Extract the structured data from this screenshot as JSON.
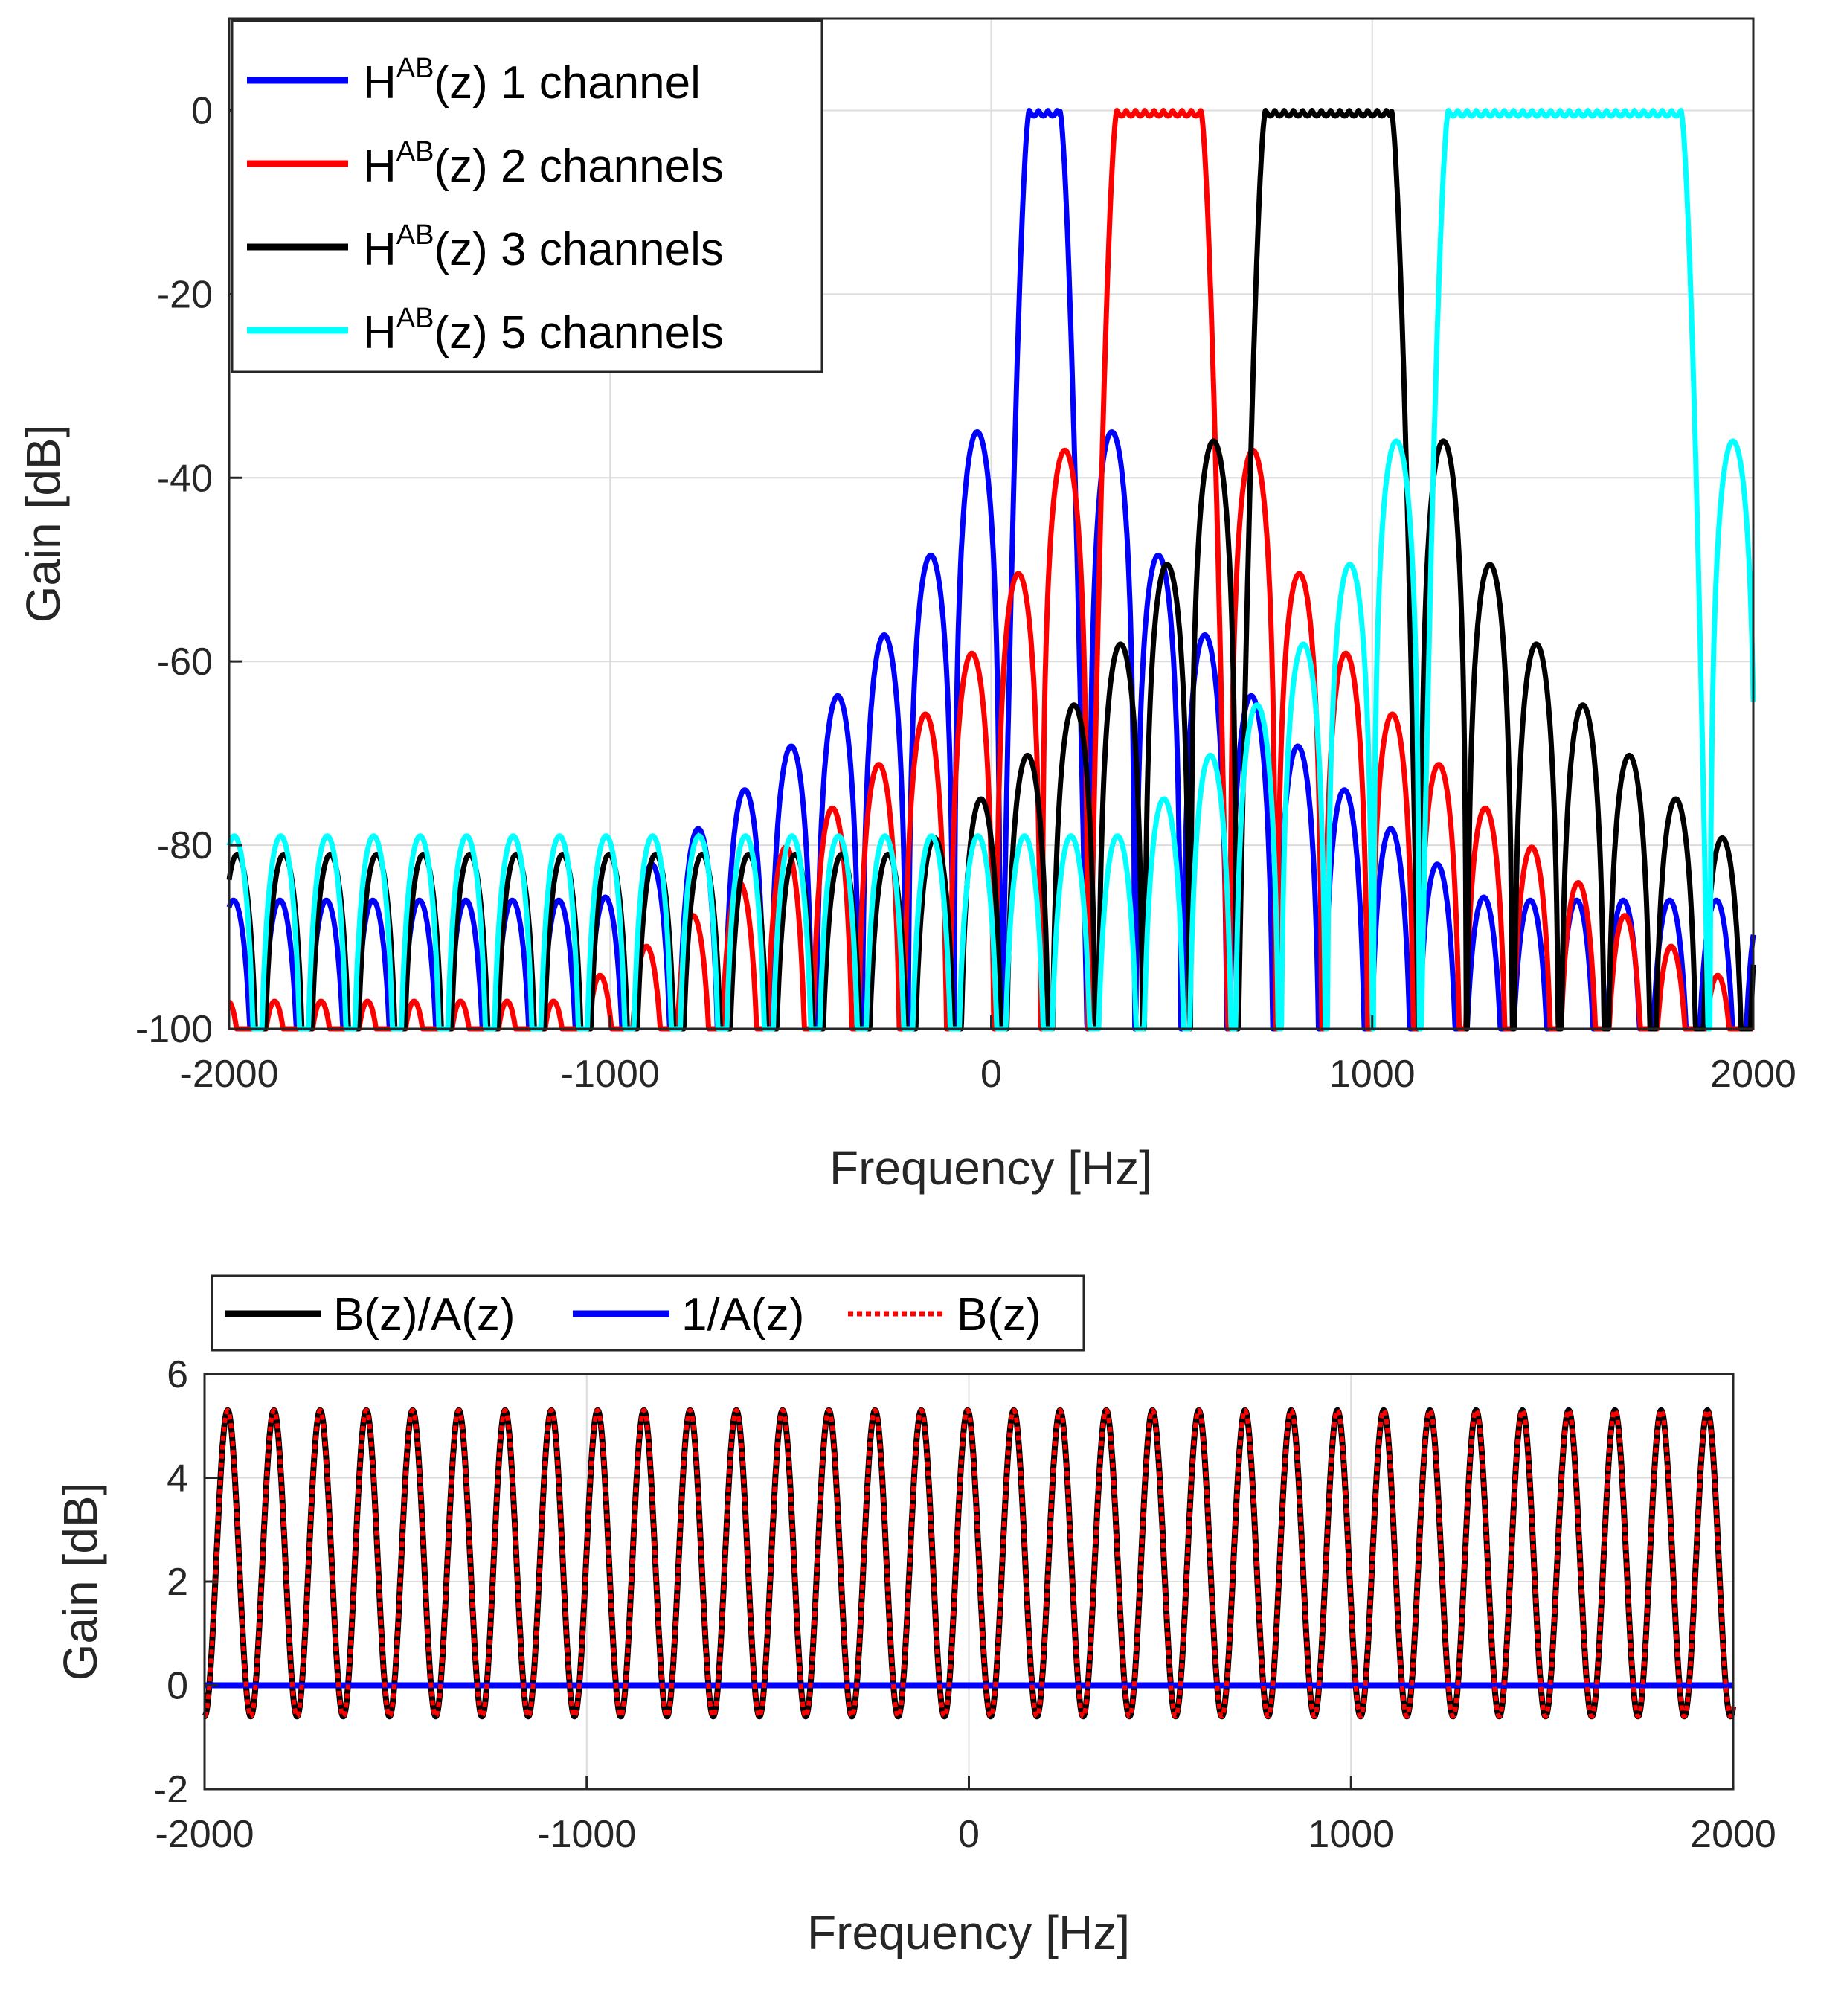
{
  "chart_data": [
    {
      "type": "line",
      "panel": "top",
      "xlabel": "Frequency [Hz]",
      "ylabel": "Gain [dB]",
      "xlim": [
        -2000,
        2000
      ],
      "ylim": [
        -100,
        10
      ],
      "xticks": [
        -2000,
        -1000,
        0,
        1000,
        2000
      ],
      "yticks": [
        0,
        -20,
        -40,
        -60,
        -80,
        -100
      ],
      "grid": true,
      "legend_position": "top-left",
      "series": [
        {
          "name_main": "H",
          "name_sup": "AB",
          "name_rest": "(z) 1 channel",
          "color": "#0000ff",
          "passband": [
            100,
            180
          ],
          "sidelobe_spacing": 122,
          "first_sidelobe_db": -35,
          "floor_db": -86
        },
        {
          "name_main": "H",
          "name_sup": "AB",
          "name_rest": "(z) 2 channels",
          "color": "#ff0000",
          "passband": [
            330,
            550
          ],
          "sidelobe_spacing": 122,
          "first_sidelobe_db": -37,
          "floor_db": -97
        },
        {
          "name_main": "H",
          "name_sup": "AB",
          "name_rest": "(z) 3 channels",
          "color": "#000000",
          "passband": [
            720,
            1050
          ],
          "sidelobe_spacing": 122,
          "first_sidelobe_db": -36,
          "floor_db": -81
        },
        {
          "name_main": "H",
          "name_sup": "AB",
          "name_rest": "(z) 5 channels",
          "color": "#00ffff",
          "passband": [
            1200,
            1810
          ],
          "sidelobe_spacing": 122,
          "first_sidelobe_db": -36,
          "floor_db": -79
        }
      ]
    },
    {
      "type": "line",
      "panel": "bottom",
      "xlabel": "Frequency [Hz]",
      "ylabel": "Gain [dB]",
      "xlim": [
        -2000,
        2000
      ],
      "ylim": [
        -2,
        6
      ],
      "xticks": [
        -2000,
        -1000,
        0,
        1000,
        2000
      ],
      "yticks": [
        6,
        4,
        2,
        0,
        -2
      ],
      "grid": true,
      "legend_position": "top-outside",
      "series": [
        {
          "name": "B(z)/A(z)",
          "color": "#000000",
          "style": "solid",
          "period_hz": 121,
          "max_db": 5.3,
          "min_db": -0.6
        },
        {
          "name": "1/A(z)",
          "color": "#0000ff",
          "style": "solid",
          "constant_db": 0
        },
        {
          "name": "B(z)",
          "color": "#ff0000",
          "style": "dotted",
          "period_hz": 121,
          "max_db": 5.3,
          "min_db": -0.6
        }
      ]
    }
  ]
}
